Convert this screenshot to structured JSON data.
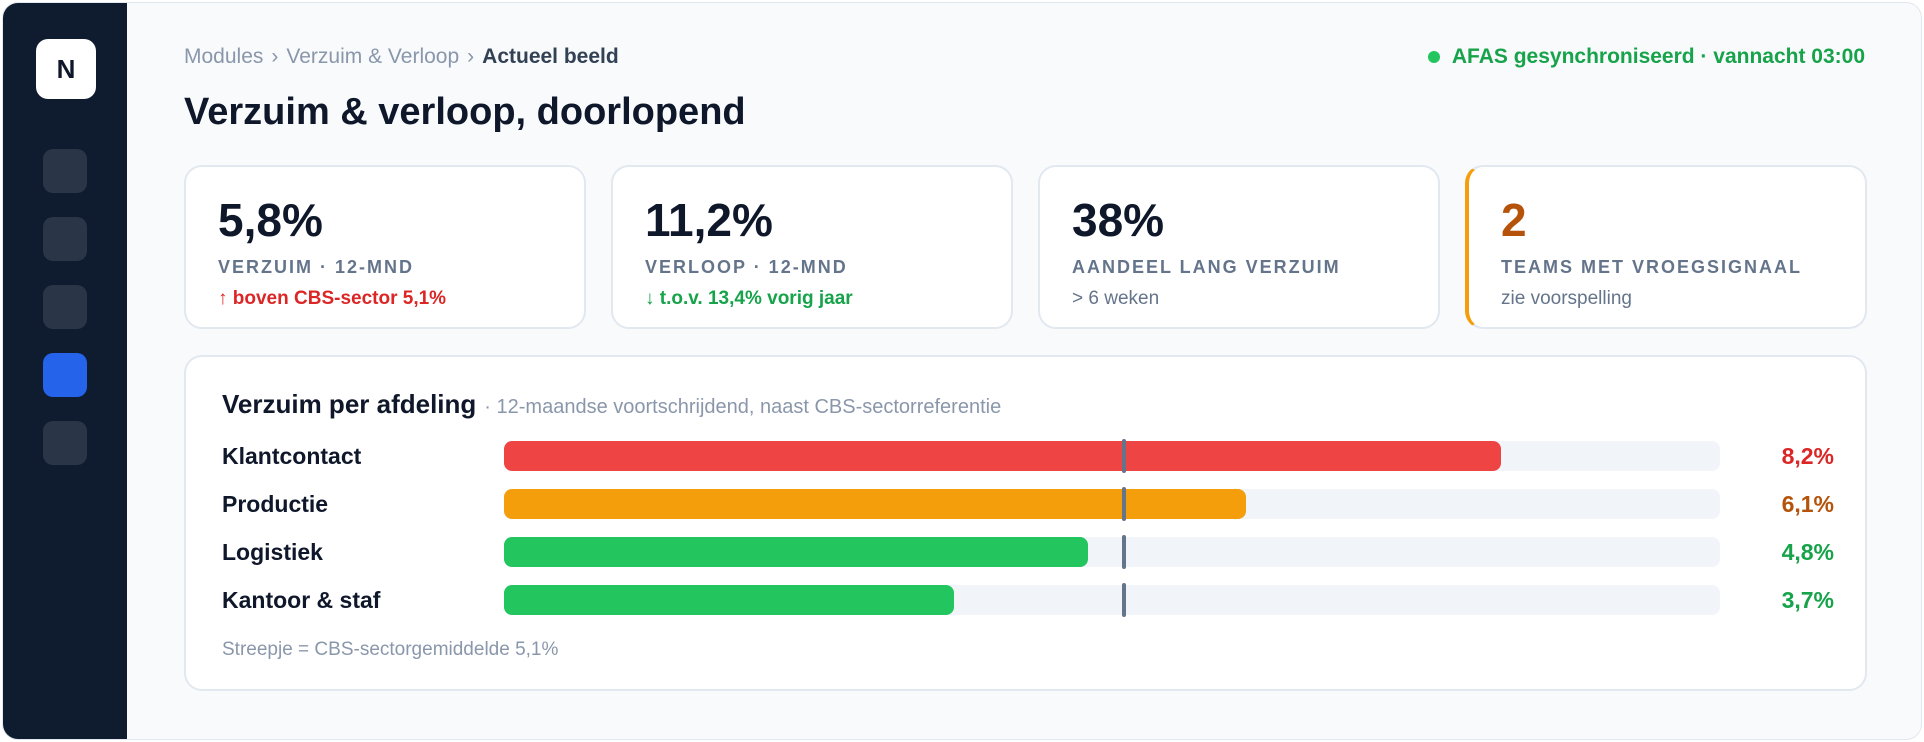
{
  "sidebar": {
    "logo": "N",
    "items": [
      {
        "name": "nav-item-1"
      },
      {
        "name": "nav-item-2"
      },
      {
        "name": "nav-item-3"
      },
      {
        "name": "nav-item-4",
        "active": true
      },
      {
        "name": "nav-item-5"
      }
    ]
  },
  "breadcrumb": {
    "items": [
      "Modules",
      "Verzuim & Verloop"
    ],
    "separator": "›",
    "current": "Actueel beeld"
  },
  "sync_status": "AFAS gesynchroniseerd · vannacht 03:00",
  "page_title": "Verzuim & verloop, doorlopend",
  "kpis": [
    {
      "value": "5,8%",
      "label": "VERZUIM · 12-MND",
      "sub": "↑ boven CBS-sector 5,1%",
      "tone": "red"
    },
    {
      "value": "11,2%",
      "label": "VERLOOP · 12-MND",
      "sub": "↓ t.o.v. 13,4% vorig jaar",
      "tone": "green"
    },
    {
      "value": "38%",
      "label": "AANDEEL LANG VERZUIM",
      "sub": "> 6 weken",
      "tone": "neutral"
    },
    {
      "value": "2",
      "label": "TEAMS MET VROEGSIGNAAL",
      "sub": "zie voorspelling",
      "tone": "alert"
    }
  ],
  "panel": {
    "title": "Verzuim per afdeling",
    "subtitle": "· 12-maandse voortschrijdend, naast CBS-sectorreferentie",
    "footnote": "Streepje = CBS-sectorgemiddelde 5,1%"
  },
  "chart_data": {
    "type": "bar",
    "orientation": "horizontal",
    "categories": [
      "Klantcontact",
      "Productie",
      "Logistiek",
      "Kantoor & staf"
    ],
    "values": [
      8.2,
      6.1,
      4.8,
      3.7
    ],
    "labels": [
      "8,2%",
      "6,1%",
      "4,8%",
      "3,7%"
    ],
    "colors": [
      "#ef4444",
      "#f59e0b",
      "#22c55e",
      "#22c55e"
    ],
    "label_colors": [
      "#dc2626",
      "#b45309",
      "#16a34a",
      "#16a34a"
    ],
    "reference_value": 5.1,
    "xlim": [
      0,
      10
    ],
    "title": "Verzuim per afdeling"
  },
  "colors": {
    "sidebar_bg": "#0f1b2e",
    "accent": "#2563eb",
    "success": "#16a34a",
    "danger": "#dc2626",
    "warning": "#b45309"
  }
}
